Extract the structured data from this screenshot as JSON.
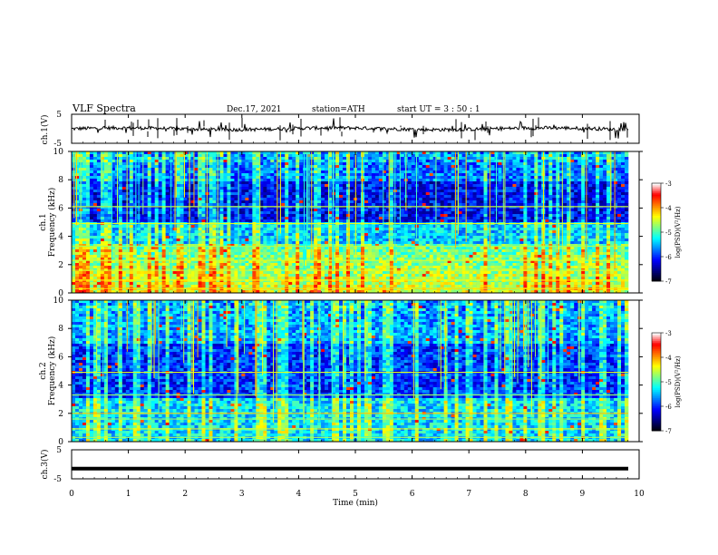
{
  "header": {
    "title": "VLF  Spectra",
    "date": "Dec.17, 2021",
    "station": "station=ATH",
    "start": "start  UT  =   3  : 50 : 1"
  },
  "colors": {
    "waveform": "#000000",
    "spectrogram_colormap": [
      "#000000",
      "#00007f",
      "#0000ff",
      "#0080ff",
      "#00ffff",
      "#80ff80",
      "#ffff00",
      "#ff8000",
      "#ff0000",
      "#ffffff"
    ]
  },
  "chart_data": [
    {
      "type": "line",
      "ylabel": "ch.1(V)",
      "ylim": [
        -5,
        5
      ],
      "yticks": [
        5,
        -5
      ],
      "xlim": [
        0,
        10
      ],
      "note": "noisy waveform near 0 V",
      "baseline": 0.0
    },
    {
      "type": "heatmap",
      "ylabel_line1": "ch.1",
      "ylabel_line2": "Frequency  (kHz)",
      "ylim": [
        0,
        10
      ],
      "yticks": [
        0,
        2,
        4,
        6,
        8,
        10
      ],
      "xlim": [
        0,
        10
      ],
      "colorbar": {
        "label": "log(PSD)(V²/Hz)",
        "range": [
          -7,
          -3
        ],
        "ticks": [
          "-3",
          "-4",
          "-5",
          "-6",
          "-7"
        ]
      }
    },
    {
      "type": "heatmap",
      "ylabel_line1": "ch.2",
      "ylabel_line2": "Frequency  (kHz)",
      "ylim": [
        0,
        10
      ],
      "yticks": [
        0,
        2,
        4,
        6,
        8,
        10
      ],
      "xlim": [
        0,
        10
      ],
      "colorbar": {
        "label": "log(PSD)(V²/Hz)",
        "range": [
          -7,
          -3
        ],
        "ticks": [
          "-3",
          "-4",
          "-5",
          "-6",
          "-7"
        ]
      }
    },
    {
      "type": "line",
      "ylabel": "ch.3(V)",
      "ylim": [
        -5,
        5
      ],
      "yticks": [
        5,
        0,
        -5
      ],
      "yticklabels": [
        "5",
        "",
        "-5"
      ],
      "xlim": [
        0,
        10
      ],
      "xlabel": "Time  (min)",
      "xticks": [
        0,
        1,
        2,
        3,
        4,
        5,
        6,
        7,
        8,
        9,
        10
      ],
      "baseline": -1.5
    }
  ]
}
